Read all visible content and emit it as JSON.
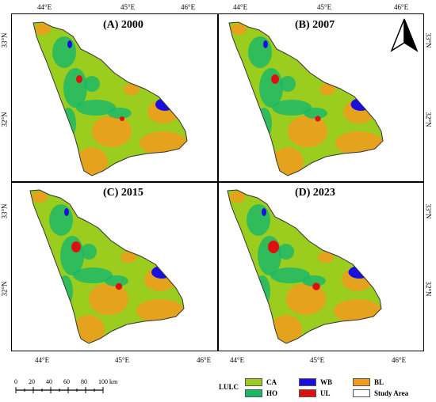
{
  "panels": [
    {
      "title": "(A) 2000"
    },
    {
      "title": "(B) 2007"
    },
    {
      "title": "(C) 2015"
    },
    {
      "title": "(D) 2023"
    }
  ],
  "axes": {
    "top_left": [
      "44°E",
      "45°E",
      "46°E"
    ],
    "top_right": [
      "44°E",
      "45°E",
      "46°E"
    ],
    "bottom_left": [
      "44°E",
      "45°E",
      "46°E"
    ],
    "bottom_right": [
      "44°E",
      "45°E",
      "46°E"
    ],
    "left_top": [
      "33°N",
      "32°N"
    ],
    "left_bottom": [
      "33°N",
      "32°N"
    ],
    "right_top": [
      "33°N",
      "32°N"
    ],
    "right_bottom": [
      "33°N",
      "32°N"
    ]
  },
  "scale_bar": {
    "labels": [
      "0",
      "20",
      "40",
      "60",
      "80",
      "100 km"
    ]
  },
  "legend": {
    "title": "LULC",
    "items": [
      {
        "label": "CA",
        "color": "#9ACD1E"
      },
      {
        "label": "HO",
        "color": "#17B86A"
      },
      {
        "label": "WB",
        "color": "#1A0FE0"
      },
      {
        "label": "UL",
        "color": "#E01010"
      },
      {
        "label": "BL",
        "color": "#F29A1C"
      },
      {
        "label": "Study Area",
        "color": "#FFFFFF"
      }
    ]
  },
  "north_arrow": {
    "icon": "north-arrow-icon"
  }
}
